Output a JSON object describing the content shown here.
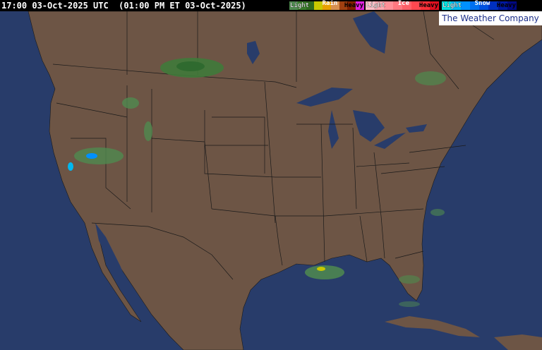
{
  "header": {
    "timestamp": "17:00 03-Oct-2025 UTC  (01:00 PM ET 03-Oct-2025)"
  },
  "legend": [
    {
      "title": "Rain",
      "light": "Light",
      "heavy": "Heavy",
      "colors": [
        "#4f8a4f",
        "#3a7a2a",
        "#2f6a1f",
        "#c8c800",
        "#e8a000",
        "#d89050",
        "#a04010",
        "#802000",
        "#e020e0"
      ]
    },
    {
      "title": "Ice",
      "light": "Light",
      "heavy": "Heavy",
      "colors": [
        "#ffc0c8",
        "#ffa8b0",
        "#ff9098",
        "#ff7880",
        "#ff6068",
        "#ff4850",
        "#ff3038",
        "#e01020"
      ]
    },
    {
      "title": "Snow",
      "light": "Light",
      "heavy": "Heavy",
      "colors": [
        "#00e0e0",
        "#00b8f0",
        "#0090ff",
        "#0070f0",
        "#0050e0",
        "#0030c0",
        "#0018a0",
        "#000880"
      ]
    }
  ],
  "logo": "The Weather Company",
  "map_colors": {
    "ocean": "#283c6a",
    "land": "#6d5545",
    "lakes": "#283c6a",
    "borders": "#1a1a1a",
    "precip_light": "#4f8a4f"
  }
}
